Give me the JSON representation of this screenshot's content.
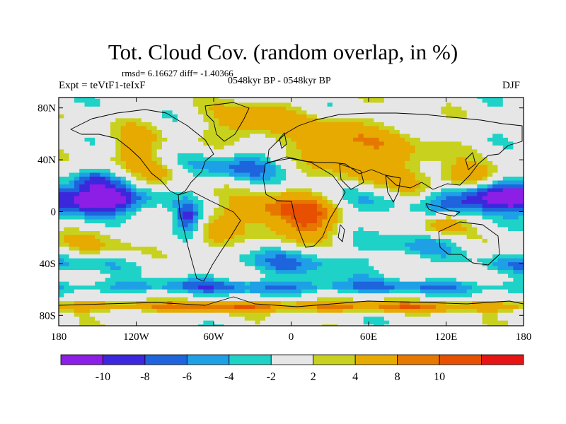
{
  "title": "Tot. Cloud Cov. (random overlap, in %)",
  "stats": "rmsd= 6.16627 diff= -1.40366",
  "period": "0548kyr BP - 0548kyr BP",
  "expt": "Expt = teVtF1-teIxF",
  "season": "DJF",
  "lat_ticks": [
    "80N",
    "40N",
    "0",
    "40S",
    "80S"
  ],
  "lon_ticks": [
    "180",
    "120W",
    "60W",
    "0",
    "60E",
    "120E",
    "180"
  ],
  "colorbar": {
    "colors": [
      "#8c1ee6",
      "#3c28dc",
      "#1e64dc",
      "#1ea0e6",
      "#1ed2c8",
      "#e6e6e6",
      "#c8d21e",
      "#e6aa00",
      "#e67800",
      "#e65000",
      "#e61414"
    ],
    "labels": [
      "-10",
      "-8",
      "-6",
      "-4",
      "-2",
      "2",
      "4",
      "8",
      "10"
    ]
  },
  "chart_data": {
    "type": "heatmap",
    "title": "Tot. Cloud Cov. (random overlap, in %)",
    "season": "DJF",
    "lon_range": [
      -180,
      180
    ],
    "lat_range": [
      -90,
      90
    ],
    "levels": [
      -10,
      -8,
      -6,
      -4,
      -2,
      2,
      4,
      8,
      10
    ],
    "rmsd": 6.16627,
    "diff": -1.40366,
    "field_description_regions": [
      {
        "lon": [
          -175,
          -110
        ],
        "lat": [
          0,
          15
        ],
        "value": -11
      },
      {
        "lon": [
          110,
          180
        ],
        "lat": [
          0,
          15
        ],
        "value": -11
      },
      {
        "lon": [
          -30,
          40
        ],
        "lat": [
          -5,
          10
        ],
        "value": 9
      },
      {
        "lon": [
          10,
          100
        ],
        "lat": [
          25,
          60
        ],
        "value": 6
      },
      {
        "lon": [
          -60,
          20
        ],
        "lat": [
          55,
          85
        ],
        "value": 7
      },
      {
        "lon": [
          -180,
          180
        ],
        "lat": [
          -62,
          -55
        ],
        "value": -5
      }
    ]
  }
}
